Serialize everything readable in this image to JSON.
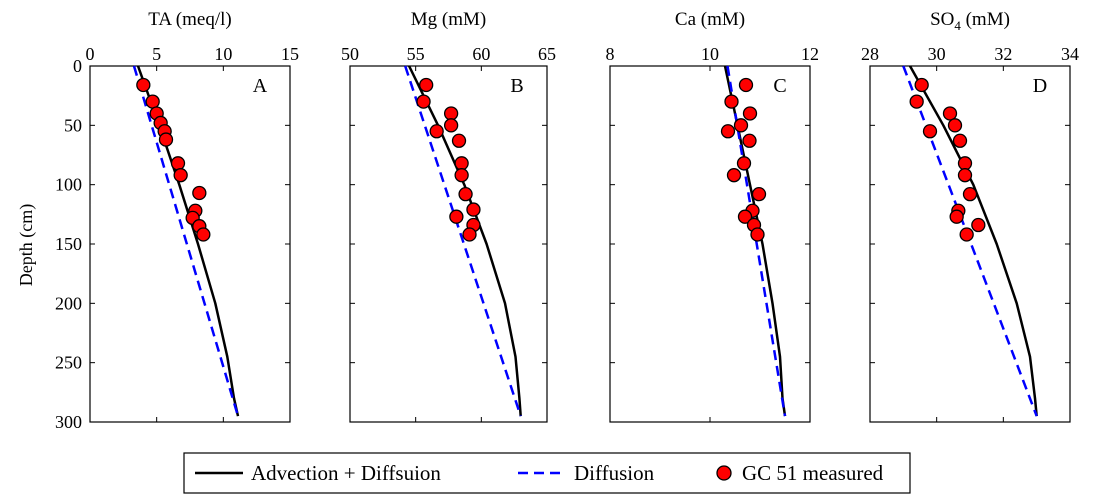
{
  "figure": {
    "y_axis_label": "Depth (cm)",
    "y_ticks": [
      "0",
      "50",
      "100",
      "150",
      "200",
      "250",
      "300"
    ]
  },
  "legend": {
    "position": "bottom-center",
    "items": [
      {
        "label": "Advection + Diffsuion",
        "style": "solid",
        "color": "#000000"
      },
      {
        "label": "Diffusion",
        "style": "dashed",
        "color": "#0000ff"
      },
      {
        "label": "GC 51 measured",
        "style": "marker",
        "color": "#ff0000"
      }
    ]
  },
  "chart_data": [
    {
      "type": "line",
      "panel_letter": "A",
      "title_main": "TA (meq/l)",
      "title_sub": "",
      "title_tail": "",
      "xlim": [
        0,
        15
      ],
      "ylim": [
        0,
        300
      ],
      "y_inverted": true,
      "x_ticks": [
        0,
        5,
        10,
        15
      ],
      "series": [
        {
          "name": "Advection + Diffsuion",
          "kind": "line",
          "x": [
            3.6,
            5.2,
            6.7,
            8.1,
            9.4,
            10.3,
            10.8,
            11.1
          ],
          "y": [
            0,
            50,
            100,
            150,
            200,
            245,
            280,
            295
          ]
        },
        {
          "name": "Diffusion",
          "kind": "line",
          "x": [
            3.3,
            11.1
          ],
          "y": [
            0,
            295
          ]
        },
        {
          "name": "GC 51 measured",
          "kind": "scatter",
          "x": [
            4.0,
            4.7,
            5.0,
            5.3,
            5.6,
            5.7,
            6.6,
            6.8,
            8.2,
            7.9,
            7.7,
            8.2,
            8.5
          ],
          "y": [
            16,
            30,
            40,
            48,
            55,
            62,
            82,
            92,
            107,
            122,
            128,
            135,
            142
          ]
        }
      ]
    },
    {
      "type": "line",
      "panel_letter": "B",
      "title_main": "Mg (mM)",
      "title_sub": "",
      "title_tail": "",
      "xlim": [
        50,
        65
      ],
      "ylim": [
        0,
        300
      ],
      "y_inverted": true,
      "x_ticks": [
        50,
        55,
        60,
        65
      ],
      "series": [
        {
          "name": "Advection + Diffsuion",
          "kind": "line",
          "x": [
            54.5,
            56.7,
            58.7,
            60.4,
            61.8,
            62.6,
            62.9,
            63.0
          ],
          "y": [
            0,
            50,
            100,
            150,
            200,
            245,
            280,
            295
          ]
        },
        {
          "name": "Diffusion",
          "kind": "line",
          "x": [
            54.2,
            63.0
          ],
          "y": [
            0,
            295
          ]
        },
        {
          "name": "GC 51 measured",
          "kind": "scatter",
          "x": [
            55.8,
            55.6,
            57.7,
            56.6,
            57.7,
            58.3,
            58.5,
            58.5,
            58.8,
            59.4,
            58.1,
            59.4,
            59.1
          ],
          "y": [
            16,
            30,
            40,
            55,
            50,
            63,
            82,
            92,
            108,
            121,
            127,
            134,
            142
          ]
        }
      ]
    },
    {
      "type": "line",
      "panel_letter": "C",
      "title_main": "Ca (mM)",
      "title_sub": "",
      "title_tail": "",
      "xlim": [
        8,
        12
      ],
      "ylim": [
        0,
        300
      ],
      "y_inverted": true,
      "x_ticks": [
        8,
        10,
        12
      ],
      "series": [
        {
          "name": "Advection + Diffsuion",
          "kind": "line",
          "x": [
            10.3,
            10.55,
            10.8,
            11.05,
            11.25,
            11.4,
            11.45,
            11.5
          ],
          "y": [
            0,
            50,
            100,
            150,
            200,
            245,
            280,
            295
          ]
        },
        {
          "name": "Diffusion",
          "kind": "line",
          "x": [
            10.35,
            11.5
          ],
          "y": [
            0,
            295
          ]
        },
        {
          "name": "GC 51 measured",
          "kind": "scatter",
          "x": [
            10.72,
            10.43,
            10.8,
            10.62,
            10.36,
            10.79,
            10.68,
            10.48,
            10.98,
            10.85,
            10.7,
            10.88,
            10.95
          ],
          "y": [
            16,
            30,
            40,
            50,
            55,
            63,
            82,
            92,
            108,
            122,
            127,
            134,
            142
          ]
        }
      ]
    },
    {
      "type": "line",
      "panel_letter": "D",
      "title_main": "SO",
      "title_sub": "4",
      "title_tail": " (mM)",
      "xlim": [
        28,
        34
      ],
      "ylim": [
        0,
        300
      ],
      "y_inverted": true,
      "x_ticks": [
        28,
        30,
        32,
        34
      ],
      "series": [
        {
          "name": "Advection + Diffsuion",
          "kind": "line",
          "x": [
            29.2,
            30.2,
            31.1,
            31.8,
            32.4,
            32.8,
            32.95,
            33.0
          ],
          "y": [
            0,
            50,
            100,
            150,
            200,
            245,
            280,
            295
          ]
        },
        {
          "name": "Diffusion",
          "kind": "line",
          "x": [
            29.0,
            33.0
          ],
          "y": [
            0,
            295
          ]
        },
        {
          "name": "GC 51 measured",
          "kind": "scatter",
          "x": [
            29.55,
            29.4,
            30.4,
            30.55,
            29.8,
            30.7,
            30.85,
            30.85,
            31.0,
            30.65,
            30.6,
            31.25,
            30.9
          ],
          "y": [
            16,
            30,
            40,
            50,
            55,
            63,
            82,
            92,
            108,
            122,
            127,
            134,
            142
          ]
        }
      ]
    }
  ]
}
